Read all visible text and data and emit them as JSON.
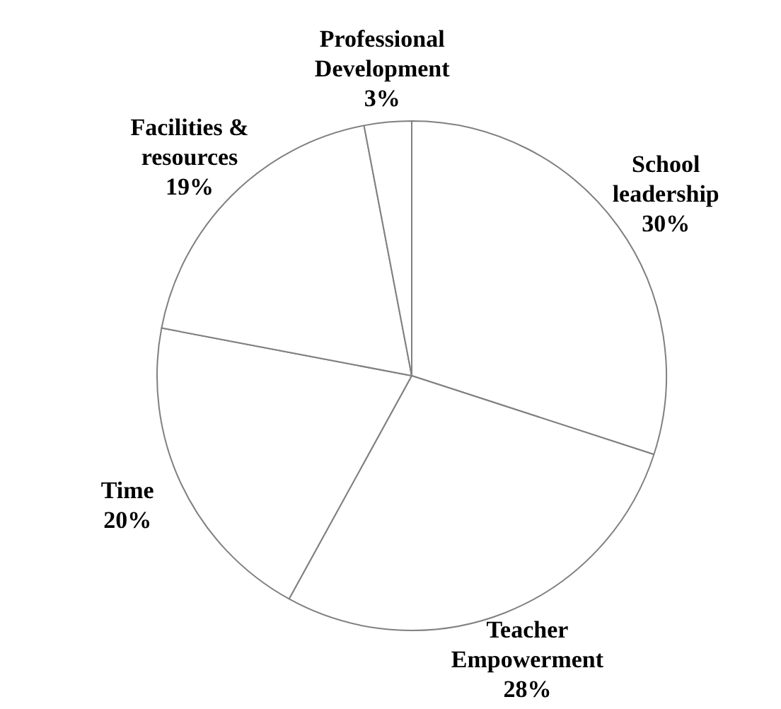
{
  "chart_data": {
    "type": "pie",
    "categories": [
      "School leadership",
      "Teacher Empowerment",
      "Time",
      "Facilities & resources",
      "Professional Development"
    ],
    "values": [
      30,
      28,
      20,
      19,
      3
    ],
    "colors": [
      "#ffffff",
      "#ffffff",
      "#ffffff",
      "#ffffff",
      "#ffffff"
    ],
    "value_labels": [
      "30%",
      "28%",
      "20%",
      "19%",
      "3%"
    ],
    "legend": false
  }
}
